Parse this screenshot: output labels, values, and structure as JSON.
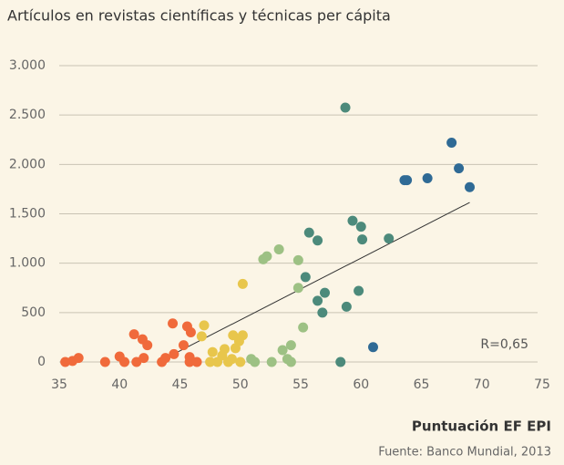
{
  "chart_data": {
    "type": "scatter",
    "title": "Artículos en revistas científicas y técnicas per cápita",
    "x_label": "Puntuación EF EPI",
    "source": "Fuente: Banco Mundial, 2013",
    "annotation": "R=0,65",
    "xlim": [
      35,
      75
    ],
    "xticks": [
      35,
      40,
      45,
      50,
      55,
      60,
      65,
      70,
      75
    ],
    "ylim": [
      -100,
      3100
    ],
    "yticks": [
      0,
      500,
      {
        "value": 1000,
        "label": "1.000"
      },
      {
        "value": 1500,
        "label": "1.500"
      },
      {
        "value": 2000,
        "label": "2.000"
      },
      {
        "value": 2500,
        "label": "2.500"
      },
      {
        "value": 3000,
        "label": "3.000"
      }
    ],
    "grid": true,
    "trendline": {
      "x": [
        43.2,
        69.0
      ],
      "y": [
        0,
        1615
      ],
      "color": "#333333"
    },
    "series": [
      {
        "color": "#f06a3b",
        "x": [
          35.5,
          36.1,
          36.6,
          38.8,
          40.0,
          40.4,
          41.2,
          41.4,
          41.9,
          42.0,
          42.3,
          43.5,
          43.8,
          44.4,
          44.5,
          45.3,
          45.6,
          45.8,
          45.9,
          45.8,
          46.4
        ],
        "values": [
          0,
          10,
          40,
          0,
          55,
          0,
          280,
          0,
          230,
          40,
          170,
          0,
          40,
          390,
          80,
          170,
          360,
          0,
          300,
          50,
          0
        ]
      },
      {
        "color": "#e8c64c",
        "x": [
          47.0,
          46.8,
          47.5,
          47.7,
          48.1,
          48.5,
          48.7,
          49.0,
          49.3,
          49.4,
          49.6,
          49.9,
          50.0,
          50.2,
          50.2
        ],
        "values": [
          370,
          260,
          0,
          100,
          0,
          65,
          130,
          0,
          30,
          270,
          140,
          210,
          0,
          270,
          790
        ]
      },
      {
        "color": "#9dc184",
        "x": [
          50.9,
          51.2,
          51.9,
          52.2,
          52.6,
          53.2,
          53.5,
          53.9,
          54.2,
          54.2,
          54.8,
          54.8,
          55.2
        ],
        "values": [
          30,
          0,
          1040,
          1070,
          0,
          1140,
          120,
          30,
          170,
          0,
          1030,
          750,
          350
        ]
      },
      {
        "color": "#4c8a7b",
        "x": [
          55.4,
          55.7,
          56.4,
          56.4,
          56.8,
          57.0,
          58.3,
          58.7,
          58.8,
          59.3,
          59.8,
          60.0,
          60.1,
          62.3
        ],
        "values": [
          860,
          1310,
          1230,
          620,
          500,
          700,
          0,
          2575,
          560,
          1430,
          720,
          1370,
          1240,
          1250
        ]
      },
      {
        "color": "#2f6a95",
        "x": [
          61.0,
          63.6,
          63.8,
          65.5,
          67.5,
          68.1,
          69.0
        ],
        "values": [
          150,
          1840,
          1840,
          1860,
          2220,
          1960,
          1770
        ]
      }
    ]
  }
}
